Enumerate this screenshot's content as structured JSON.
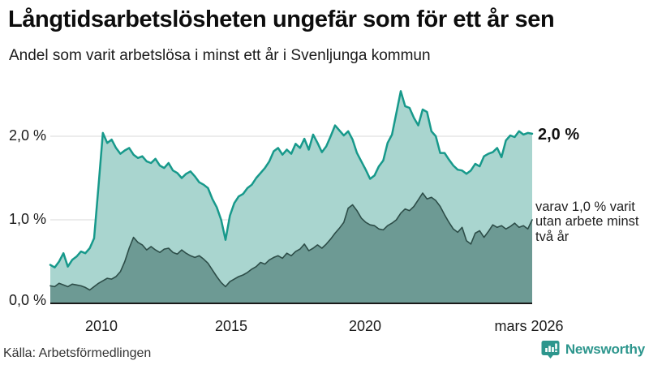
{
  "chart_data": {
    "type": "area",
    "title": "Långtidsarbetslösheten ungefär som för ett år sen",
    "subtitle": "Andel som varit arbetslösa i minst ett år i Svenljunga kommun",
    "unit": "%",
    "grid": true,
    "grid_color": "#d8d8d8",
    "baseline_color": "#1a1a1a",
    "x_range": [
      "2008",
      "mars 2026"
    ],
    "x_ticks": [
      {
        "label": "2010",
        "year": 2010
      },
      {
        "label": "2015",
        "year": 2015
      },
      {
        "label": "2020",
        "year": 2020
      },
      {
        "label": "mars 2026",
        "year": 2026.2
      }
    ],
    "y_ticks": [
      0,
      1,
      2
    ],
    "y_tick_labels": [
      "0,0 %",
      "1,0 %",
      "2,0 %"
    ],
    "ylim": [
      0,
      2.7
    ],
    "legend_position": "right-of-line-end-labels",
    "series": [
      {
        "name": "arbetslösa minst ett år",
        "color": "#17998b",
        "fill": "#a9d5cf",
        "stroke_width": 2.5,
        "end_label": "2,0 %",
        "end_value": 2.0,
        "values": [
          0.46,
          0.43,
          0.5,
          0.6,
          0.44,
          0.52,
          0.56,
          0.62,
          0.6,
          0.66,
          0.78,
          1.4,
          2.04,
          1.92,
          1.96,
          1.86,
          1.79,
          1.83,
          1.86,
          1.78,
          1.74,
          1.76,
          1.7,
          1.68,
          1.73,
          1.65,
          1.62,
          1.68,
          1.59,
          1.56,
          1.5,
          1.55,
          1.58,
          1.52,
          1.45,
          1.42,
          1.38,
          1.25,
          1.15,
          1.0,
          0.76,
          1.05,
          1.2,
          1.28,
          1.31,
          1.38,
          1.42,
          1.5,
          1.56,
          1.62,
          1.7,
          1.82,
          1.86,
          1.78,
          1.84,
          1.79,
          1.91,
          1.86,
          1.97,
          1.84,
          2.02,
          1.92,
          1.81,
          1.88,
          2.0,
          2.13,
          2.07,
          2.01,
          2.06,
          1.96,
          1.8,
          1.7,
          1.6,
          1.49,
          1.53,
          1.64,
          1.71,
          1.92,
          2.02,
          2.28,
          2.54,
          2.36,
          2.34,
          2.22,
          2.13,
          2.32,
          2.29,
          2.06,
          2.0,
          1.8,
          1.8,
          1.72,
          1.65,
          1.6,
          1.59,
          1.55,
          1.59,
          1.67,
          1.64,
          1.76,
          1.79,
          1.81,
          1.86,
          1.75,
          1.95,
          2.01,
          1.99,
          2.06,
          2.02,
          2.04,
          2.03
        ]
      },
      {
        "name": "varit utan arbete minst två år",
        "color": "#2d4d48",
        "fill": "#6d9a94",
        "stroke_width": 1.6,
        "end_label": "varav 1,0 % varit utan arbete minst två år",
        "end_value": 1.0,
        "values": [
          0.21,
          0.2,
          0.24,
          0.22,
          0.2,
          0.23,
          0.22,
          0.21,
          0.19,
          0.16,
          0.2,
          0.24,
          0.27,
          0.3,
          0.29,
          0.32,
          0.38,
          0.5,
          0.66,
          0.79,
          0.73,
          0.7,
          0.64,
          0.68,
          0.64,
          0.61,
          0.65,
          0.66,
          0.61,
          0.59,
          0.64,
          0.6,
          0.57,
          0.55,
          0.57,
          0.53,
          0.48,
          0.4,
          0.32,
          0.25,
          0.2,
          0.26,
          0.29,
          0.32,
          0.34,
          0.37,
          0.41,
          0.44,
          0.49,
          0.47,
          0.52,
          0.55,
          0.57,
          0.54,
          0.6,
          0.57,
          0.62,
          0.65,
          0.71,
          0.63,
          0.66,
          0.7,
          0.66,
          0.71,
          0.77,
          0.84,
          0.9,
          0.97,
          1.14,
          1.18,
          1.11,
          1.02,
          0.97,
          0.94,
          0.93,
          0.89,
          0.88,
          0.93,
          0.96,
          1.0,
          1.08,
          1.13,
          1.11,
          1.16,
          1.24,
          1.32,
          1.25,
          1.27,
          1.23,
          1.16,
          1.06,
          0.97,
          0.89,
          0.85,
          0.91,
          0.75,
          0.71,
          0.84,
          0.87,
          0.79,
          0.86,
          0.94,
          0.91,
          0.93,
          0.89,
          0.92,
          0.96,
          0.91,
          0.93,
          0.89,
          1.0
        ]
      }
    ]
  },
  "footer": {
    "source": "Källa: Arbetsförmedlingen"
  },
  "logo": {
    "text": "Newsworthy",
    "color": "#2d968d",
    "icon": "newsworthy-chart-bubble-icon"
  }
}
